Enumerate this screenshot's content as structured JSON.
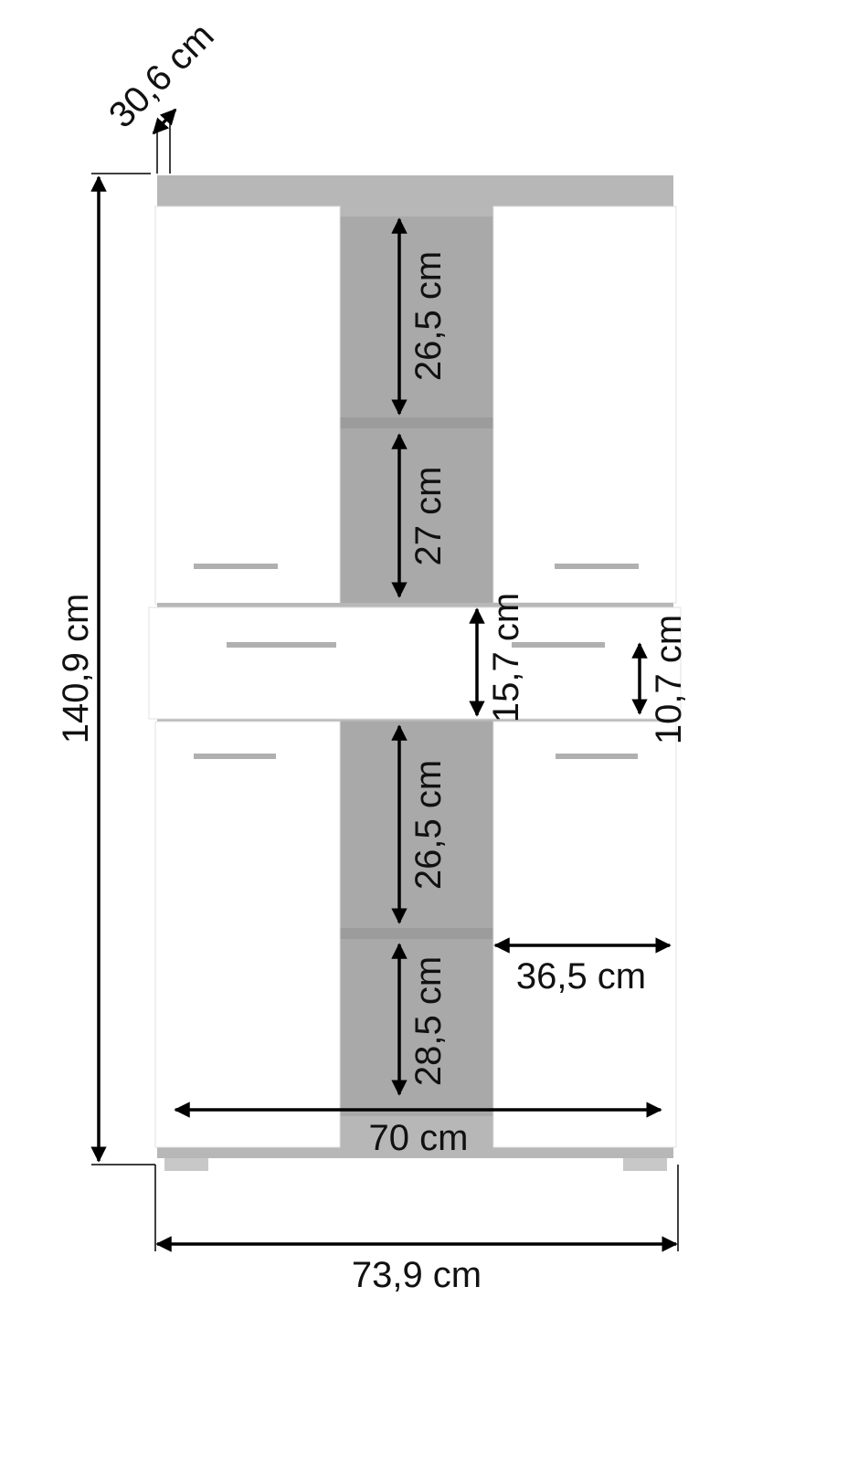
{
  "dimensions": {
    "depth": "30,6 cm",
    "total_height": "140,9 cm",
    "upper_top_compartment": "26,5 cm",
    "upper_bottom_compartment": "27 cm",
    "drawer_height": "15,7 cm",
    "drawer_inner_height": "10,7 cm",
    "lower_top_compartment": "26,5 cm",
    "lower_bottom_compartment": "28,5 cm",
    "door_width": "36,5 cm",
    "inner_width": "70 cm",
    "total_width": "73,9 cm"
  },
  "colors": {
    "frame": "#b7b7b7",
    "interior": "#a9a9a9",
    "door": "#ffffff",
    "arrow": "#000000"
  }
}
